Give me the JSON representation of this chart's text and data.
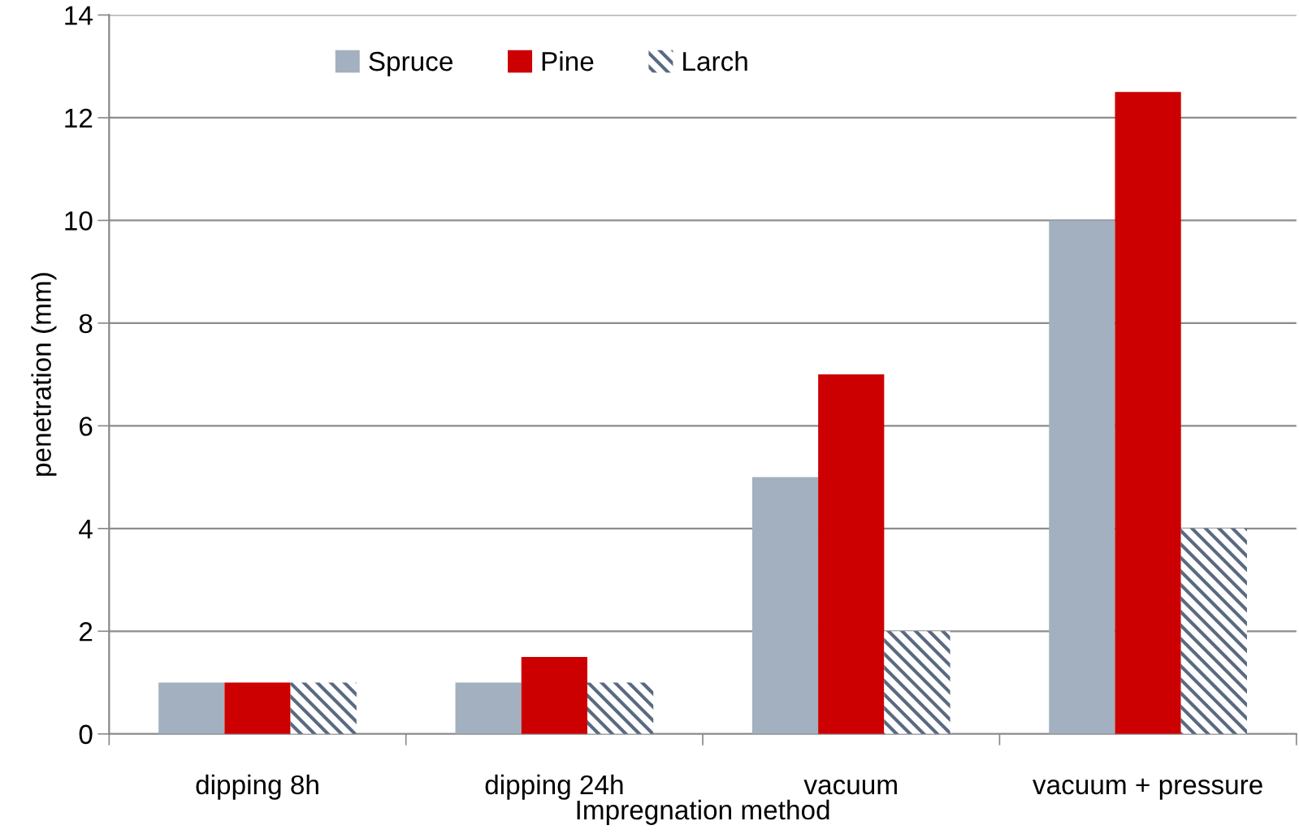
{
  "chart_data": {
    "type": "bar",
    "xlabel": "Impregnation method",
    "ylabel": "penetration (mm)",
    "categories": [
      "dipping 8h",
      "dipping 24h",
      "vacuum",
      "vacuum + pressure"
    ],
    "series": [
      {
        "name": "Spruce",
        "color": "#a2b0bf",
        "values": [
          1,
          1,
          5,
          10
        ]
      },
      {
        "name": "Pine",
        "color": "#cc0000",
        "values": [
          1,
          1.5,
          7,
          12.5
        ]
      },
      {
        "name": "Larch",
        "color": "#5a6a82",
        "values": [
          1,
          1,
          2,
          4
        ]
      }
    ],
    "ylim": [
      0,
      14
    ],
    "yticks": [
      0,
      2,
      4,
      6,
      8,
      10,
      12,
      14
    ],
    "grid": "y",
    "legend": "top left"
  }
}
